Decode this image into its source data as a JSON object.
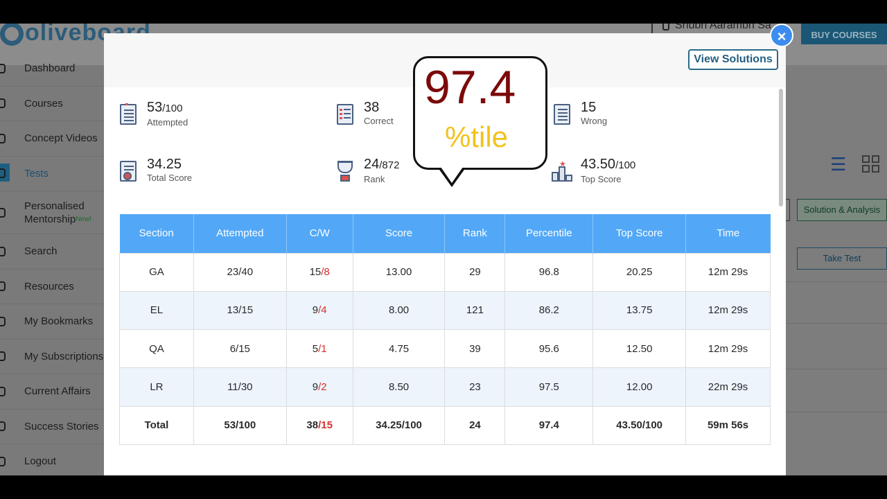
{
  "app": {
    "logo": "oliveboard",
    "user_name": "Shubh Aarambh Sa",
    "buy_courses": "BUY COURSES"
  },
  "sidebar": {
    "items": [
      {
        "label": "Dashboard",
        "icon": "dashboard-icon"
      },
      {
        "label": "Courses",
        "icon": "courses-icon"
      },
      {
        "label": "Concept Videos",
        "icon": "video-icon"
      },
      {
        "label": "Tests",
        "icon": "pencil-icon",
        "active": true
      },
      {
        "label": "Personalised",
        "label2": "Mentorship",
        "badge": "New!",
        "icon": "mentor-icon"
      },
      {
        "label": "Search",
        "icon": "search-icon"
      },
      {
        "label": "Resources",
        "icon": "resources-icon"
      },
      {
        "label": "My Bookmarks",
        "icon": "bookmark-icon"
      },
      {
        "label": "My Subscriptions",
        "icon": "subscription-icon"
      },
      {
        "label": "Current Affairs",
        "icon": "lightning-icon"
      },
      {
        "label": "Success Stories",
        "icon": "user-icon"
      },
      {
        "label": "Logout",
        "icon": "power-icon"
      }
    ]
  },
  "background_actions": {
    "solution_analysis": "Solution & Analysis",
    "take_test": "Take Test"
  },
  "modal": {
    "view_solutions": "View Solutions",
    "close": "×",
    "stats": {
      "attempted": {
        "value": "53",
        "total": "/100",
        "label": "Attempted"
      },
      "correct": {
        "value": "38",
        "label": "Correct"
      },
      "wrong": {
        "value": "15",
        "label": "Wrong"
      },
      "total_score": {
        "value": "34.25",
        "label": "Total Score"
      },
      "rank": {
        "value": "24",
        "total": "/872",
        "label": "Rank"
      },
      "top_score": {
        "value": "43.50",
        "total": "/100",
        "label": "Top Score"
      }
    },
    "table": {
      "headers": [
        "Section",
        "Attempted",
        "C/W",
        "Score",
        "Rank",
        "Percentile",
        "Top Score",
        "Time"
      ],
      "rows": [
        {
          "section": "GA",
          "attempted": "23/40",
          "correct": "15",
          "wrong": "/8",
          "score": "13.00",
          "rank": "29",
          "percentile": "96.8",
          "top_score": "20.25",
          "time": "12m 29s"
        },
        {
          "section": "EL",
          "attempted": "13/15",
          "correct": "9",
          "wrong": "/4",
          "score": "8.00",
          "rank": "121",
          "percentile": "86.2",
          "top_score": "13.75",
          "time": "12m 29s"
        },
        {
          "section": "QA",
          "attempted": "6/15",
          "correct": "5",
          "wrong": "/1",
          "score": "4.75",
          "rank": "39",
          "percentile": "95.6",
          "top_score": "12.50",
          "time": "12m 29s"
        },
        {
          "section": "LR",
          "attempted": "11/30",
          "correct": "9",
          "wrong": "/2",
          "score": "8.50",
          "rank": "23",
          "percentile": "97.5",
          "top_score": "12.00",
          "time": "22m 29s"
        }
      ],
      "total": {
        "section": "Total",
        "attempted": "53/100",
        "correct": "38",
        "wrong": "/15",
        "score": "34.25/100",
        "rank": "24",
        "percentile": "97.4",
        "top_score": "43.50/100",
        "time": "59m 56s"
      }
    }
  },
  "callout": {
    "value": "97.4",
    "label": "%tile"
  },
  "colors": {
    "header_blue": "#52a8f7",
    "wrong_red": "#d32f2f",
    "percentile_dark_red": "#7b0a0a",
    "percentile_yellow": "#f2c21b",
    "close_blue": "#3d8df0"
  }
}
